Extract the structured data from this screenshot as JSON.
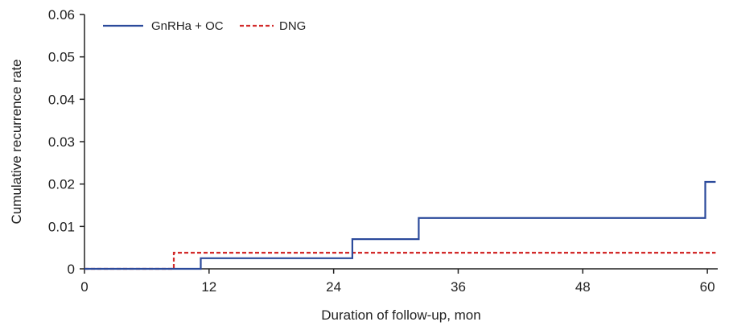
{
  "chart_data": {
    "type": "line",
    "subtype": "step",
    "title": "",
    "xlabel": "Duration of follow-up, mon",
    "ylabel": "Cumulative recurrence rate",
    "xlim": [
      0,
      61
    ],
    "ylim": [
      0,
      0.06
    ],
    "xticks": [
      0,
      12,
      24,
      36,
      48,
      60
    ],
    "yticks": [
      0,
      0.01,
      0.02,
      0.03,
      0.04,
      0.05,
      0.06
    ],
    "ytick_labels": [
      "0",
      "0.01",
      "0.02",
      "0.03",
      "0.04",
      "0.05",
      "0.06"
    ],
    "grid": false,
    "legend_position": "top-left",
    "series": [
      {
        "name": "GnRHa + OC",
        "color": "#2b4a9b",
        "line_style": "solid",
        "points": [
          [
            0,
            0
          ],
          [
            11.2,
            0
          ],
          [
            11.2,
            0.0025
          ],
          [
            25.8,
            0.0025
          ],
          [
            25.8,
            0.007
          ],
          [
            32.2,
            0.007
          ],
          [
            32.2,
            0.012
          ],
          [
            59.8,
            0.012
          ],
          [
            59.8,
            0.0205
          ],
          [
            60.8,
            0.0205
          ]
        ]
      },
      {
        "name": "DNG",
        "color": "#d22b2b",
        "line_style": "dashed",
        "points": [
          [
            0,
            0
          ],
          [
            8.6,
            0
          ],
          [
            8.6,
            0.0038
          ],
          [
            60.8,
            0.0038
          ]
        ]
      }
    ]
  }
}
